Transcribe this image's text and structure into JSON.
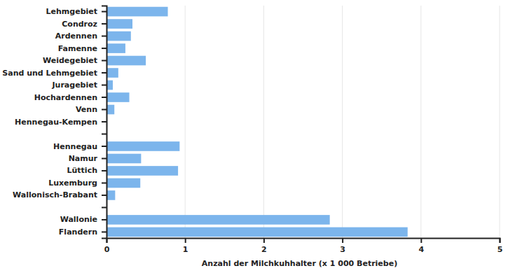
{
  "chart_data": {
    "type": "bar",
    "orientation": "horizontal",
    "categories": [
      "Lehmgebiet",
      "Condroz",
      "Ardennen",
      "Famenne",
      "Weidegebiet",
      "Sand und Lehmgebiet",
      "Juragebiet",
      "Hochardennen",
      "Venn",
      "Hennegau-Kempen",
      null,
      "Hennegau",
      "Namur",
      "Lüttich",
      "Luxemburg",
      "Wallonisch-Brabant",
      null,
      "Wallonie",
      "Flandern"
    ],
    "values": [
      0.78,
      0.33,
      0.31,
      0.24,
      0.5,
      0.15,
      0.08,
      0.29,
      0.1,
      0.01,
      null,
      0.93,
      0.44,
      0.91,
      0.43,
      0.11,
      null,
      2.84,
      3.83
    ],
    "color": "#7cb5ec",
    "x_label": "Anzahl der Milchkuhhalter (x 1 000 Betriebe)",
    "xlim": [
      0,
      5
    ],
    "xticks": [
      0,
      1,
      2,
      3,
      4,
      5
    ],
    "grid": true
  }
}
